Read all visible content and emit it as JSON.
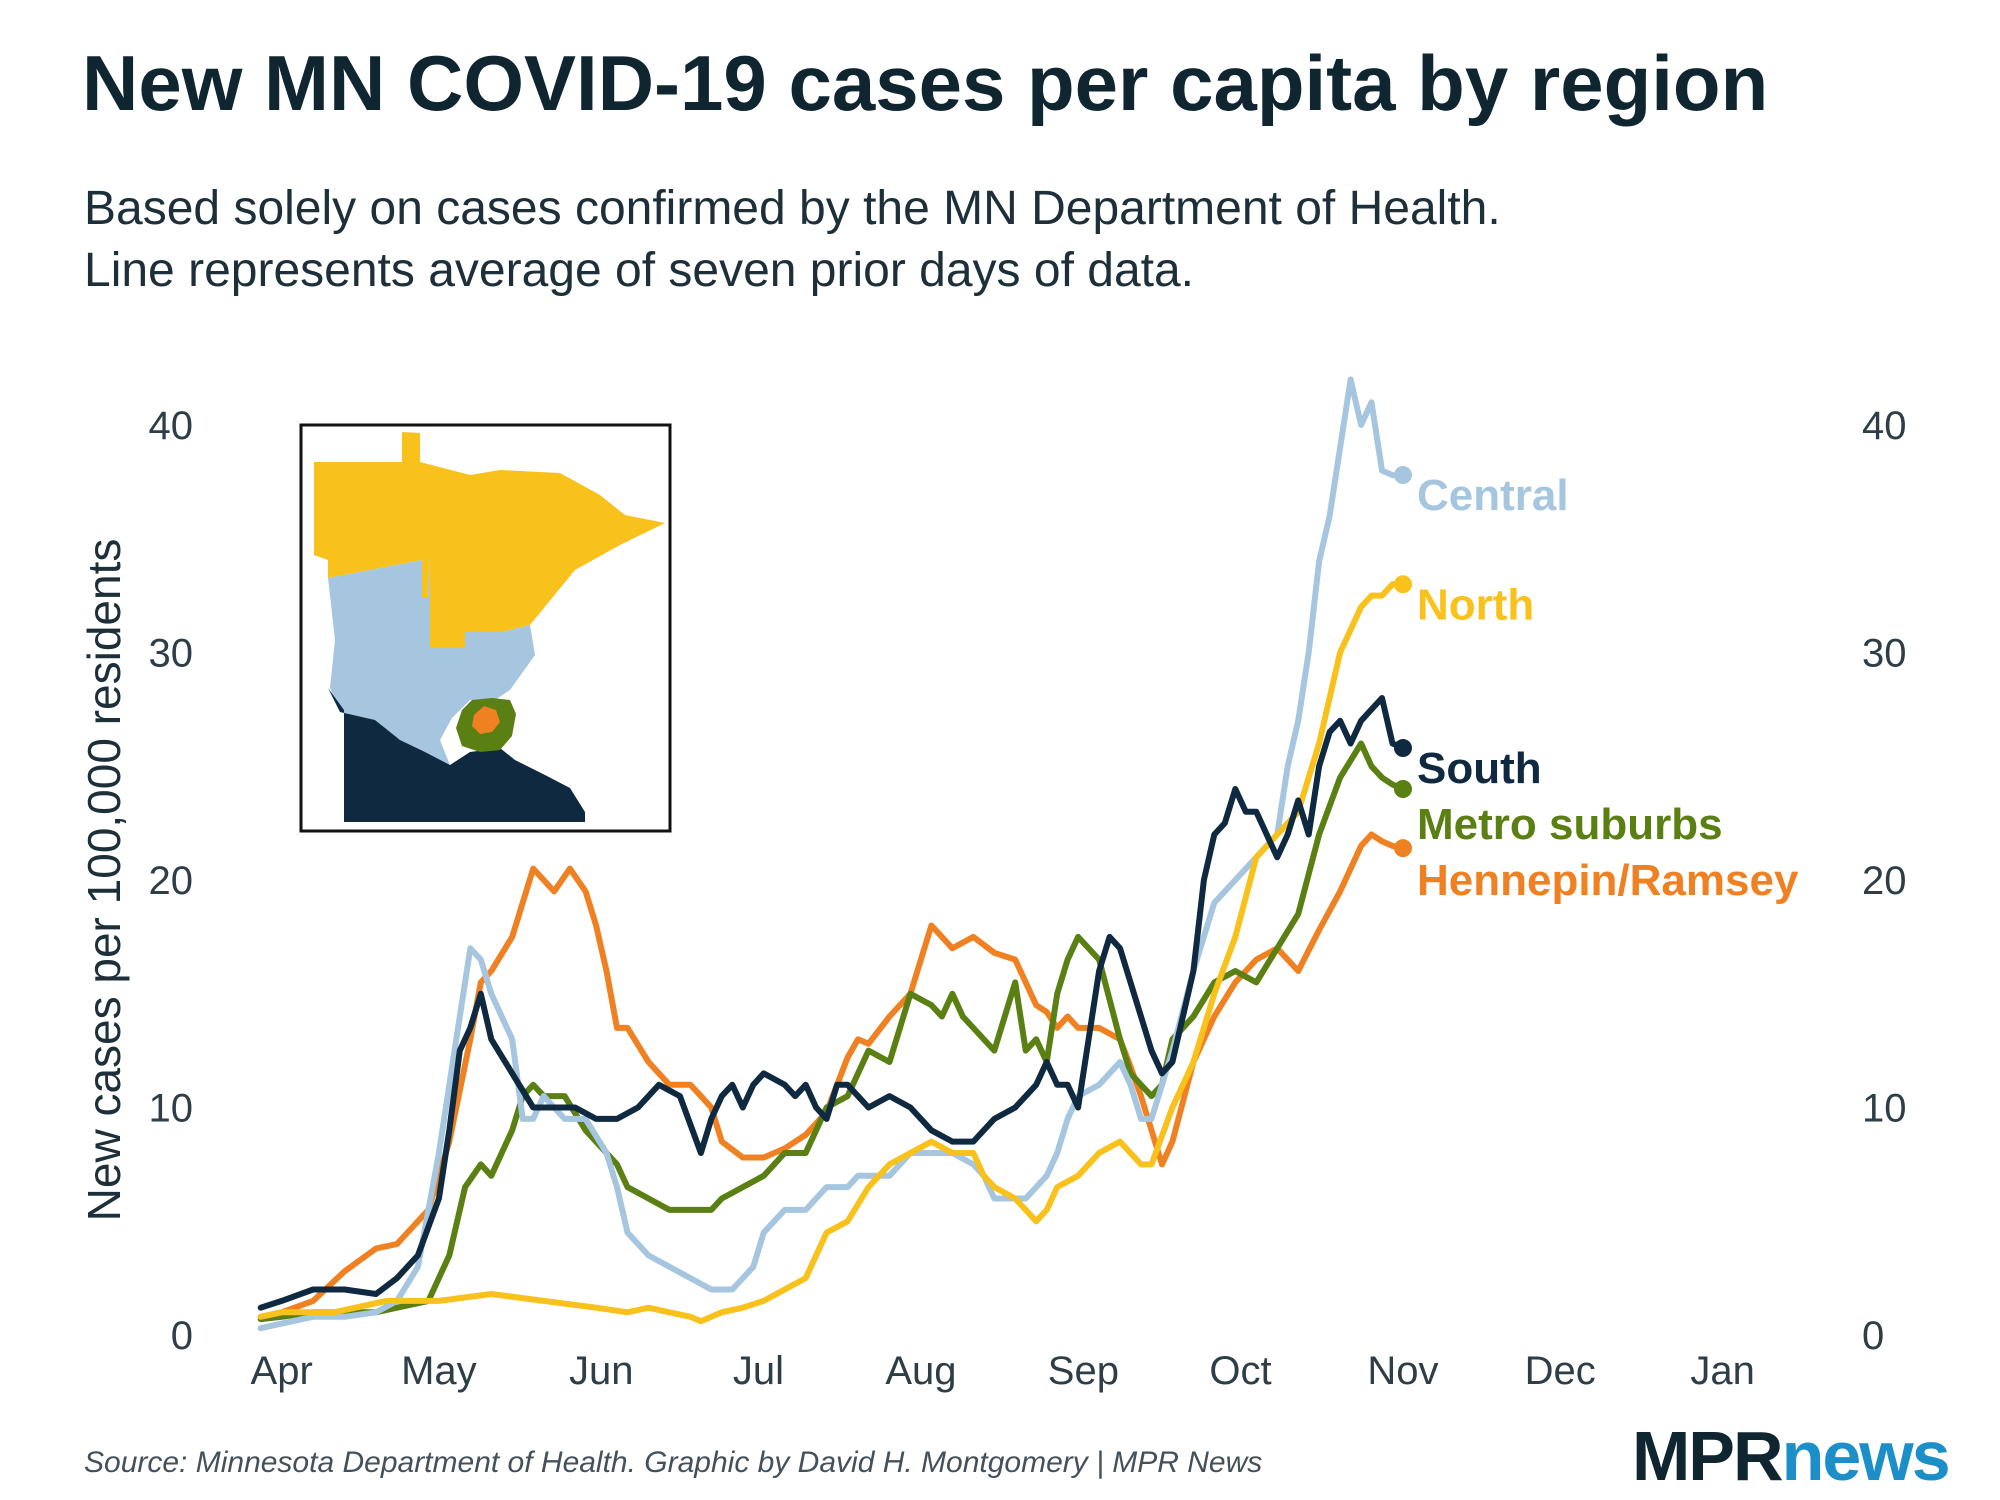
{
  "header": {
    "title": "New MN COVID-19 cases per capita by region",
    "subtitle_line1": "Based solely on cases confirmed by the MN Department of Health.",
    "subtitle_line2": "Line represents average of seven prior days of data."
  },
  "footer": {
    "source": "Source: Minnesota Department of Health. Graphic by David H. Montgomery | MPR News",
    "logo_mpr": "MPR",
    "logo_news": "news"
  },
  "chart_data": {
    "type": "line",
    "title": "New MN COVID-19 cases per capita by region",
    "xlabel": "",
    "ylabel": "New cases per 100,000 residents",
    "xlim": [
      -7,
      285
    ],
    "ylim": [
      0,
      40
    ],
    "x_ticks": [
      0,
      30,
      61,
      91,
      122,
      153,
      183,
      214,
      244,
      275
    ],
    "x_tick_labels": [
      "Apr",
      "May",
      "Jun",
      "Jul",
      "Aug",
      "Sep",
      "Oct",
      "Nov",
      "Dec",
      "Jan"
    ],
    "y_ticks": [
      0,
      10,
      20,
      30,
      40
    ],
    "y_tick_labels": [
      "0",
      "10",
      "20",
      "30",
      "40"
    ],
    "grid": false,
    "x_unit": "days since Apr 1",
    "series": [
      {
        "name": "Hennepin/Ramsey",
        "color": "#f08122",
        "end_label": "Hennepin/Ramsey",
        "x": [
          -4,
          0,
          6,
          12,
          18,
          22,
          28,
          32,
          36,
          38,
          40,
          44,
          46,
          48,
          52,
          55,
          58,
          60,
          62,
          64,
          66,
          70,
          72,
          74,
          78,
          80,
          82,
          84,
          88,
          92,
          96,
          100,
          104,
          108,
          110,
          112,
          116,
          120,
          124,
          128,
          132,
          136,
          140,
          144,
          146,
          148,
          150,
          152,
          156,
          160,
          162,
          164,
          166,
          168,
          170,
          174,
          178,
          182,
          186,
          190,
          194,
          198,
          202,
          206,
          208,
          210,
          212,
          214
        ],
        "values": [
          0.8,
          1.0,
          1.5,
          2.8,
          3.8,
          4.0,
          5.5,
          8.5,
          13.0,
          15.5,
          16.0,
          17.5,
          19.0,
          20.5,
          19.5,
          20.5,
          19.5,
          18.0,
          16.0,
          13.5,
          13.5,
          12.0,
          11.5,
          11.0,
          11.0,
          10.5,
          10.0,
          8.5,
          7.8,
          7.8,
          8.2,
          8.8,
          9.8,
          12.2,
          13.0,
          12.8,
          14.0,
          15.0,
          18.0,
          17.0,
          17.5,
          16.8,
          16.5,
          14.5,
          14.2,
          13.5,
          14.0,
          13.5,
          13.5,
          13.0,
          11.8,
          10.5,
          9.0,
          7.5,
          8.5,
          12.0,
          14.0,
          15.5,
          16.5,
          17.0,
          16.0,
          17.8,
          19.5,
          21.5,
          22.0,
          21.7,
          21.5,
          21.4
        ]
      },
      {
        "name": "Metro suburbs",
        "color": "#5a7f12",
        "end_label": "Metro suburbs",
        "x": [
          -4,
          0,
          6,
          12,
          18,
          22,
          28,
          32,
          35,
          38,
          40,
          42,
          44,
          46,
          48,
          50,
          54,
          58,
          62,
          64,
          66,
          70,
          74,
          78,
          82,
          84,
          88,
          92,
          96,
          100,
          104,
          108,
          112,
          116,
          120,
          124,
          126,
          128,
          130,
          132,
          136,
          140,
          142,
          144,
          146,
          148,
          150,
          152,
          156,
          160,
          162,
          164,
          166,
          168,
          170,
          174,
          178,
          182,
          186,
          190,
          194,
          198,
          202,
          206,
          208,
          210,
          212,
          214
        ],
        "values": [
          0.7,
          0.8,
          1.0,
          1.0,
          1.0,
          1.2,
          1.5,
          3.5,
          6.5,
          7.5,
          7.0,
          8.0,
          9.0,
          10.5,
          11.0,
          10.5,
          10.5,
          9.0,
          8.0,
          7.5,
          6.5,
          6.0,
          5.5,
          5.5,
          5.5,
          6.0,
          6.5,
          7.0,
          8.0,
          8.0,
          10.0,
          10.5,
          12.5,
          12.0,
          15.0,
          14.5,
          14.0,
          15.0,
          14.0,
          13.5,
          12.5,
          15.5,
          12.5,
          13.0,
          12.0,
          15.0,
          16.5,
          17.5,
          16.5,
          13.0,
          11.5,
          11.0,
          10.5,
          11.0,
          13.0,
          14.0,
          15.5,
          16.0,
          15.5,
          17.0,
          18.5,
          22.0,
          24.5,
          26.0,
          25.0,
          24.5,
          24.2,
          24.0
        ]
      },
      {
        "name": "Central",
        "color": "#a6c6e0",
        "end_label": "Central",
        "x": [
          -4,
          0,
          6,
          12,
          18,
          22,
          26,
          30,
          34,
          36,
          38,
          40,
          44,
          46,
          48,
          50,
          54,
          58,
          62,
          64,
          66,
          70,
          74,
          78,
          82,
          86,
          90,
          92,
          96,
          100,
          104,
          108,
          110,
          112,
          116,
          120,
          124,
          128,
          132,
          134,
          136,
          138,
          142,
          144,
          146,
          148,
          150,
          152,
          156,
          160,
          162,
          164,
          166,
          168,
          170,
          174,
          178,
          182,
          186,
          190,
          192,
          194,
          196,
          198,
          200,
          202,
          204,
          206,
          208,
          210,
          212,
          214
        ],
        "values": [
          0.3,
          0.5,
          0.8,
          0.8,
          1.0,
          1.5,
          3.0,
          8.0,
          14.0,
          17.0,
          16.5,
          15.0,
          13.0,
          9.5,
          9.5,
          10.5,
          9.5,
          9.5,
          8.0,
          6.5,
          4.5,
          3.5,
          3.0,
          2.5,
          2.0,
          2.0,
          3.0,
          4.5,
          5.5,
          5.5,
          6.5,
          6.5,
          7.0,
          7.0,
          7.0,
          8.0,
          8.0,
          8.0,
          7.5,
          7.0,
          6.0,
          6.0,
          6.0,
          6.5,
          7.0,
          8.0,
          9.5,
          10.5,
          11.0,
          12.0,
          11.0,
          9.5,
          9.5,
          11.0,
          12.5,
          16.0,
          19.0,
          20.0,
          21.0,
          22.0,
          25.0,
          27.0,
          30.0,
          34.0,
          36.0,
          39.0,
          42.0,
          40.0,
          41.0,
          38.0,
          37.8,
          37.8
        ]
      },
      {
        "name": "North",
        "color": "#f9c11b",
        "end_label": "North",
        "x": [
          -4,
          0,
          10,
          20,
          30,
          40,
          50,
          60,
          66,
          70,
          74,
          78,
          80,
          84,
          88,
          92,
          96,
          100,
          104,
          108,
          112,
          116,
          120,
          124,
          128,
          132,
          134,
          136,
          140,
          142,
          144,
          146,
          148,
          152,
          154,
          156,
          160,
          162,
          164,
          166,
          170,
          174,
          178,
          182,
          186,
          190,
          194,
          198,
          200,
          202,
          204,
          206,
          208,
          210,
          212,
          214
        ],
        "values": [
          0.8,
          1.0,
          1.0,
          1.5,
          1.5,
          1.8,
          1.5,
          1.2,
          1.0,
          1.2,
          1.0,
          0.8,
          0.6,
          1.0,
          1.2,
          1.5,
          2.0,
          2.5,
          4.5,
          5.0,
          6.5,
          7.5,
          8.0,
          8.5,
          8.0,
          8.0,
          7.0,
          6.5,
          6.0,
          5.5,
          5.0,
          5.5,
          6.5,
          7.0,
          7.5,
          8.0,
          8.5,
          8.0,
          7.5,
          7.5,
          10.0,
          12.0,
          15.0,
          17.5,
          21.0,
          22.0,
          23.0,
          26.0,
          28.0,
          30.0,
          31.0,
          32.0,
          32.5,
          32.5,
          33.0,
          33.0
        ]
      },
      {
        "name": "South",
        "color": "#0f2a40",
        "end_label": "South",
        "x": [
          -4,
          0,
          6,
          12,
          18,
          22,
          26,
          30,
          32,
          34,
          36,
          38,
          40,
          44,
          48,
          52,
          56,
          60,
          64,
          68,
          72,
          76,
          80,
          82,
          84,
          86,
          88,
          90,
          92,
          96,
          98,
          100,
          102,
          104,
          106,
          108,
          112,
          116,
          120,
          124,
          128,
          132,
          136,
          140,
          144,
          146,
          148,
          150,
          152,
          154,
          156,
          158,
          160,
          162,
          164,
          166,
          168,
          170,
          174,
          176,
          178,
          180,
          182,
          184,
          186,
          188,
          190,
          192,
          194,
          196,
          198,
          200,
          202,
          204,
          206,
          208,
          210,
          212,
          214
        ],
        "values": [
          1.2,
          1.5,
          2.0,
          2.0,
          1.8,
          2.5,
          3.5,
          6.0,
          9.0,
          12.5,
          13.5,
          15.0,
          13.0,
          11.5,
          10.0,
          10.0,
          10.0,
          9.5,
          9.5,
          10.0,
          11.0,
          10.5,
          8.0,
          9.5,
          10.5,
          11.0,
          10.0,
          11.0,
          11.5,
          11.0,
          10.5,
          11.0,
          10.0,
          9.5,
          11.0,
          11.0,
          10.0,
          10.5,
          10.0,
          9.0,
          8.5,
          8.5,
          9.5,
          10.0,
          11.0,
          12.0,
          11.0,
          11.0,
          10.0,
          13.0,
          16.0,
          17.5,
          17.0,
          15.5,
          14.0,
          12.5,
          11.5,
          12.0,
          16.0,
          20.0,
          22.0,
          22.5,
          24.0,
          23.0,
          23.0,
          22.0,
          21.0,
          22.0,
          23.5,
          22.0,
          25.0,
          26.5,
          27.0,
          26.0,
          27.0,
          27.5,
          28.0,
          26.0,
          25.8
        ]
      }
    ]
  },
  "inset_map": {
    "regions": [
      {
        "name": "North",
        "color": "#f9c11b"
      },
      {
        "name": "Central",
        "color": "#a6c6e0"
      },
      {
        "name": "South",
        "color": "#0f2a40"
      },
      {
        "name": "Metro suburbs",
        "color": "#5a7f12"
      },
      {
        "name": "Hennepin/Ramsey",
        "color": "#f08122"
      }
    ]
  }
}
